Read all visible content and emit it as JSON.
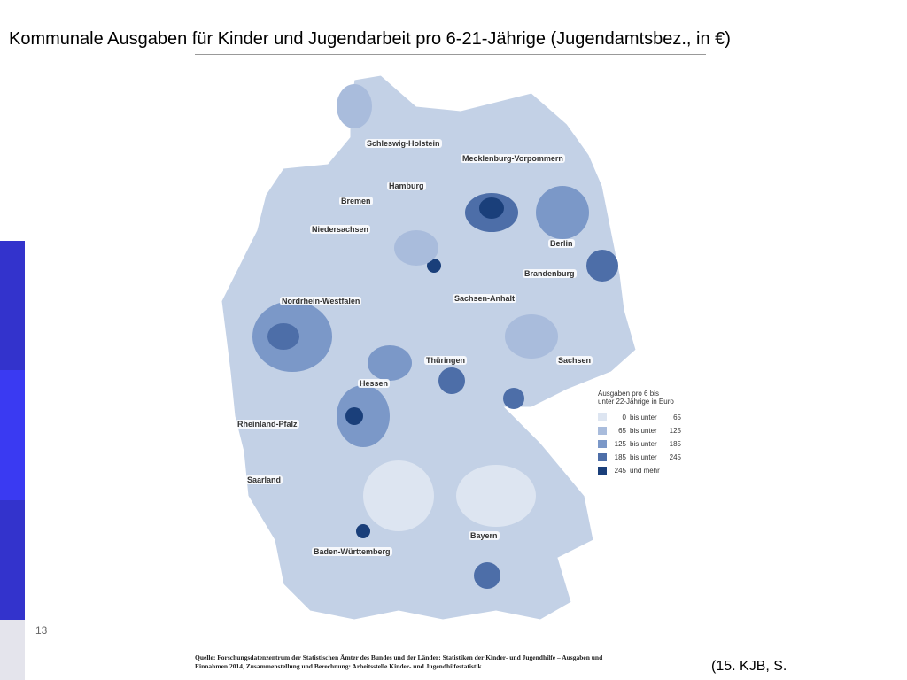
{
  "title": "Kommunale Ausgaben für Kinder und Jugendarbeit pro 6-21-Jährige (Jugendamtsbez., in €)",
  "page_number": "13",
  "regions": [
    "Schleswig-Holstein",
    "Mecklenburg-Vorpommern",
    "Hamburg",
    "Bremen",
    "Niedersachsen",
    "Berlin",
    "Brandenburg",
    "Sachsen-Anhalt",
    "Nordrhein-Westfalen",
    "Thüringen",
    "Sachsen",
    "Hessen",
    "Rheinland-Pfalz",
    "Saarland",
    "Bayern",
    "Baden-Württemberg"
  ],
  "legend": {
    "title": [
      "Ausgaben pro 6 bis",
      "unter 22-Jährige in Euro"
    ],
    "items": [
      {
        "from": "0",
        "connector": "bis unter",
        "to": "65"
      },
      {
        "from": "65",
        "connector": "bis unter",
        "to": "125"
      },
      {
        "from": "125",
        "connector": "bis unter",
        "to": "185"
      },
      {
        "from": "185",
        "connector": "bis unter",
        "to": "245"
      },
      {
        "from": "245",
        "connector": "und mehr"
      }
    ]
  },
  "source": [
    "Quelle: Forschungsdatenzentrum der Statistischen Ämter des Bundes und der Länder: Statistiken der Kinder- und Jugendhilfe – Ausgaben und",
    "Einnahmen 2014, Zusammenstellung und Berechnung: Arbeitsstelle Kinder- und Jugendhilfestatistik"
  ],
  "citation": "(15. KJB, S."
}
